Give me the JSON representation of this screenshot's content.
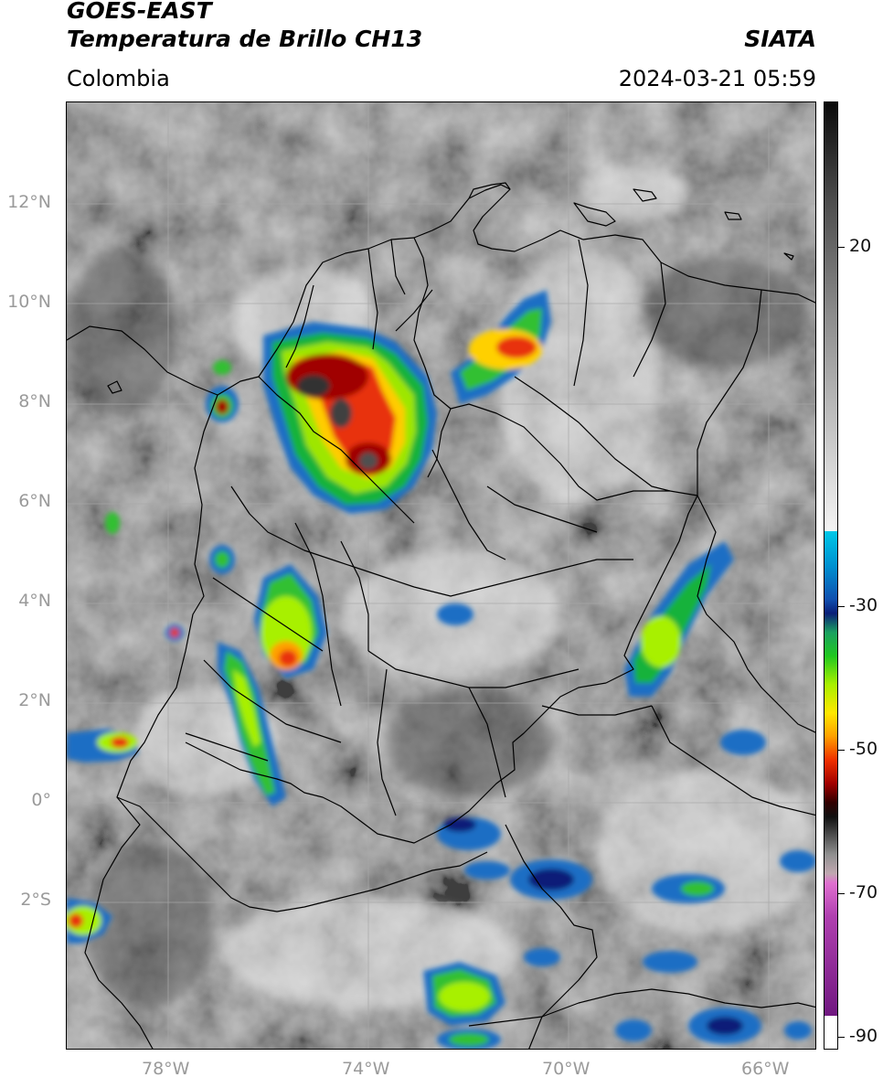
{
  "header": {
    "title_line1": "GOES-EAST",
    "title_line2": "Temperatura de Brillo CH13",
    "region": "Colombia",
    "agency": "SIATA",
    "datetime": "2024-03-21 05:59"
  },
  "axes": {
    "latitude_ticks": [
      "12°N",
      "10°N",
      "8°N",
      "6°N",
      "4°N",
      "2°N",
      "0°",
      "2°S"
    ],
    "longitude_ticks": [
      "78°W",
      "74°W",
      "70°W",
      "66°W"
    ]
  },
  "colorbar": {
    "ticks": [
      "20",
      "-30",
      "-50",
      "-70",
      "-90"
    ]
  },
  "map": {
    "extent_lon": [
      -80,
      -65
    ],
    "extent_lat": [
      -4.8,
      14.2
    ],
    "projection": "PlateCarree"
  }
}
